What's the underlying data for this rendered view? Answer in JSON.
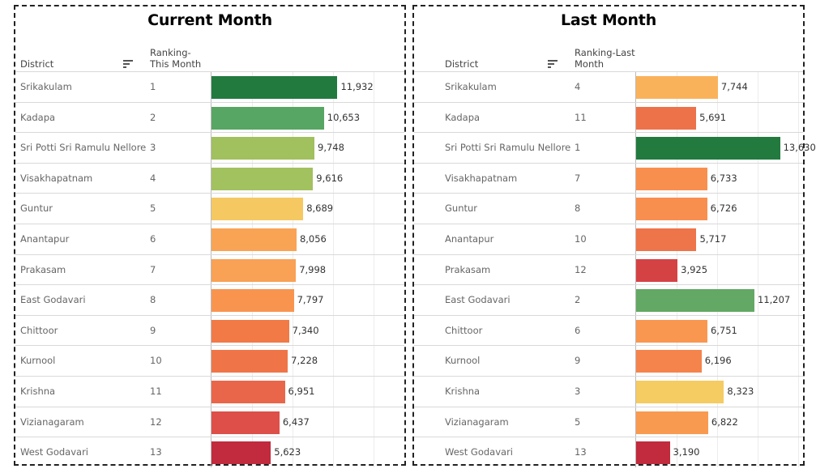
{
  "chart_data": [
    {
      "type": "bar",
      "title": "Current Month",
      "column_headers": {
        "district": "District",
        "ranking_line1": "Ranking-",
        "ranking_line2": "This Month"
      },
      "xlim": [
        0,
        14000
      ],
      "rows": [
        {
          "district": "Srikakulam",
          "rank": "1",
          "value": 11932,
          "value_label": "11,932",
          "color": "#227a3f"
        },
        {
          "district": "Kadapa",
          "rank": "2",
          "value": 10653,
          "value_label": "10,653",
          "color": "#57a663"
        },
        {
          "district": "Sri Potti Sri Ramulu Nellore",
          "rank": "3",
          "value": 9748,
          "value_label": "9,748",
          "color": "#a1c05e"
        },
        {
          "district": "Visakhapatnam",
          "rank": "4",
          "value": 9616,
          "value_label": "9,616",
          "color": "#a2c15f"
        },
        {
          "district": "Guntur",
          "rank": "5",
          "value": 8689,
          "value_label": "8,689",
          "color": "#f5c862"
        },
        {
          "district": "Anantapur",
          "rank": "6",
          "value": 8056,
          "value_label": "8,056",
          "color": "#f9a355"
        },
        {
          "district": "Prakasam",
          "rank": "7",
          "value": 7998,
          "value_label": "7,998",
          "color": "#f9a155"
        },
        {
          "district": "East Godavari",
          "rank": "8",
          "value": 7797,
          "value_label": "7,797",
          "color": "#f9944f"
        },
        {
          "district": "Chittoor",
          "rank": "9",
          "value": 7340,
          "value_label": "7,340",
          "color": "#f17a47"
        },
        {
          "district": "Kurnool",
          "rank": "10",
          "value": 7228,
          "value_label": "7,228",
          "color": "#ef7548"
        },
        {
          "district": "Krishna",
          "rank": "11",
          "value": 6951,
          "value_label": "6,951",
          "color": "#e9664a"
        },
        {
          "district": "Vizianagaram",
          "rank": "12",
          "value": 6437,
          "value_label": "6,437",
          "color": "#dd4f48"
        },
        {
          "district": "West Godavari",
          "rank": "13",
          "value": 5623,
          "value_label": "5,623",
          "color": "#c22a3d"
        }
      ]
    },
    {
      "type": "bar",
      "title": "Last Month",
      "column_headers": {
        "district": "District",
        "ranking_line1": "Ranking-Last",
        "ranking_line2": "Month"
      },
      "xlim": [
        0,
        14000
      ],
      "rows": [
        {
          "district": "Srikakulam",
          "rank": "4",
          "value": 7744,
          "value_label": "7,744",
          "color": "#fab25a"
        },
        {
          "district": "Kadapa",
          "rank": "11",
          "value": 5691,
          "value_label": "5,691",
          "color": "#ed7249"
        },
        {
          "district": "Sri Potti Sri Ramulu Nellore",
          "rank": "1",
          "value": 13630,
          "value_label": "13,630",
          "color": "#227a3f"
        },
        {
          "district": "Visakhapatnam",
          "rank": "7",
          "value": 6733,
          "value_label": "6,733",
          "color": "#f98f4e"
        },
        {
          "district": "Guntur",
          "rank": "8",
          "value": 6726,
          "value_label": "6,726",
          "color": "#f98f4e"
        },
        {
          "district": "Anantapur",
          "rank": "10",
          "value": 5717,
          "value_label": "5,717",
          "color": "#ee7449"
        },
        {
          "district": "Prakasam",
          "rank": "12",
          "value": 3925,
          "value_label": "3,925",
          "color": "#d54244"
        },
        {
          "district": "East Godavari",
          "rank": "2",
          "value": 11207,
          "value_label": "11,207",
          "color": "#63a864"
        },
        {
          "district": "Chittoor",
          "rank": "6",
          "value": 6751,
          "value_label": "6,751",
          "color": "#f99750"
        },
        {
          "district": "Kurnool",
          "rank": "9",
          "value": 6196,
          "value_label": "6,196",
          "color": "#f5844c"
        },
        {
          "district": "Krishna",
          "rank": "3",
          "value": 8323,
          "value_label": "8,323",
          "color": "#f5cc62"
        },
        {
          "district": "Vizianagaram",
          "rank": "5",
          "value": 6822,
          "value_label": "6,822",
          "color": "#f99a51"
        },
        {
          "district": "West Godavari",
          "rank": "13",
          "value": 3190,
          "value_label": "3,190",
          "color": "#c22a3d"
        }
      ]
    }
  ],
  "icons": {
    "sort": "sort-descending-icon"
  }
}
